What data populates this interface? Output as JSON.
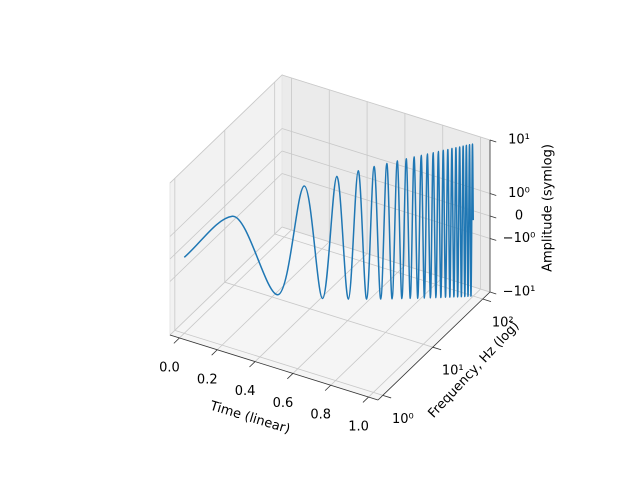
{
  "chart_data": {
    "type": "line3d",
    "xlabel": "Time (linear)",
    "ylabel": "Frequency, Hz (log)",
    "zlabel": "Amplitude (symlog)",
    "xlim": [
      -0.05,
      1.05
    ],
    "ylim": [
      0.8,
      140
    ],
    "zlim": [
      -10,
      10
    ],
    "yscale": "log",
    "zscale": "symlog",
    "linthresh": 1,
    "linscale": 0.42,
    "grid": true,
    "xticks": [
      {
        "value": 0,
        "label": "0.0"
      },
      0.2,
      0.4,
      0.6,
      0.8,
      {
        "value": 1,
        "label": "1.0"
      }
    ],
    "yticks": [
      {
        "value": 1,
        "label": "10⁰"
      },
      {
        "value": 10,
        "label": "10¹"
      },
      {
        "value": 100,
        "label": "10²"
      }
    ],
    "zticks": [
      {
        "value": -10,
        "label": "−10¹"
      },
      {
        "value": -1,
        "label": "−10⁰"
      },
      0,
      {
        "value": 1,
        "label": "10⁰"
      },
      {
        "value": 10,
        "label": "10¹"
      }
    ],
    "series": [
      {
        "color": "#1f77b4",
        "x": [
          0,
          0.166,
          0.324,
          0.415,
          0.479,
          0.528,
          0.568,
          0.602,
          0.631,
          0.657,
          0.68,
          0.701,
          0.719,
          0.737,
          0.753,
          0.768,
          0.782,
          0.795,
          0.808,
          0.82,
          0.831,
          0.841,
          0.852,
          0.861,
          0.871,
          0.879,
          0.888,
          0.896,
          0.904,
          0.912,
          0.919,
          0.926,
          0.933,
          0.94,
          0.946,
          0.953,
          0.959,
          0.965,
          0.971,
          0.976,
          0.982,
          0.987,
          0.992,
          0.997,
          1
        ],
        "y": [
          1,
          2.15,
          4.45,
          6.76,
          9.06,
          11.36,
          13.66,
          15.97,
          18.27,
          20.57,
          22.87,
          25.18,
          27.48,
          29.78,
          32.09,
          34.39,
          36.69,
          38.99,
          41.3,
          43.6,
          45.9,
          48.2,
          50.51,
          52.81,
          55.11,
          57.41,
          59.72,
          62.02,
          64.32,
          66.62,
          68.93,
          71.23,
          73.53,
          75.83,
          78.14,
          80.44,
          82.74,
          85.04,
          87.35,
          89.65,
          91.95,
          94.25,
          96.56,
          98.86,
          100
        ],
        "z": [
          0,
          1.7,
          -3.2,
          4.2,
          -4.8,
          5.3,
          -5.7,
          6.0,
          -6.3,
          6.6,
          -6.8,
          7.0,
          -7.2,
          7.4,
          -7.5,
          7.7,
          -7.8,
          8.0,
          -8.1,
          8.2,
          -8.3,
          8.4,
          -8.5,
          8.6,
          -8.7,
          8.8,
          -8.9,
          9.0,
          -9.0,
          9.1,
          -9.2,
          9.3,
          -9.3,
          9.4,
          -9.5,
          9.5,
          -9.6,
          9.7,
          -9.7,
          9.8,
          -9.8,
          9.9,
          -9.9,
          10.0,
          0
        ]
      }
    ]
  }
}
